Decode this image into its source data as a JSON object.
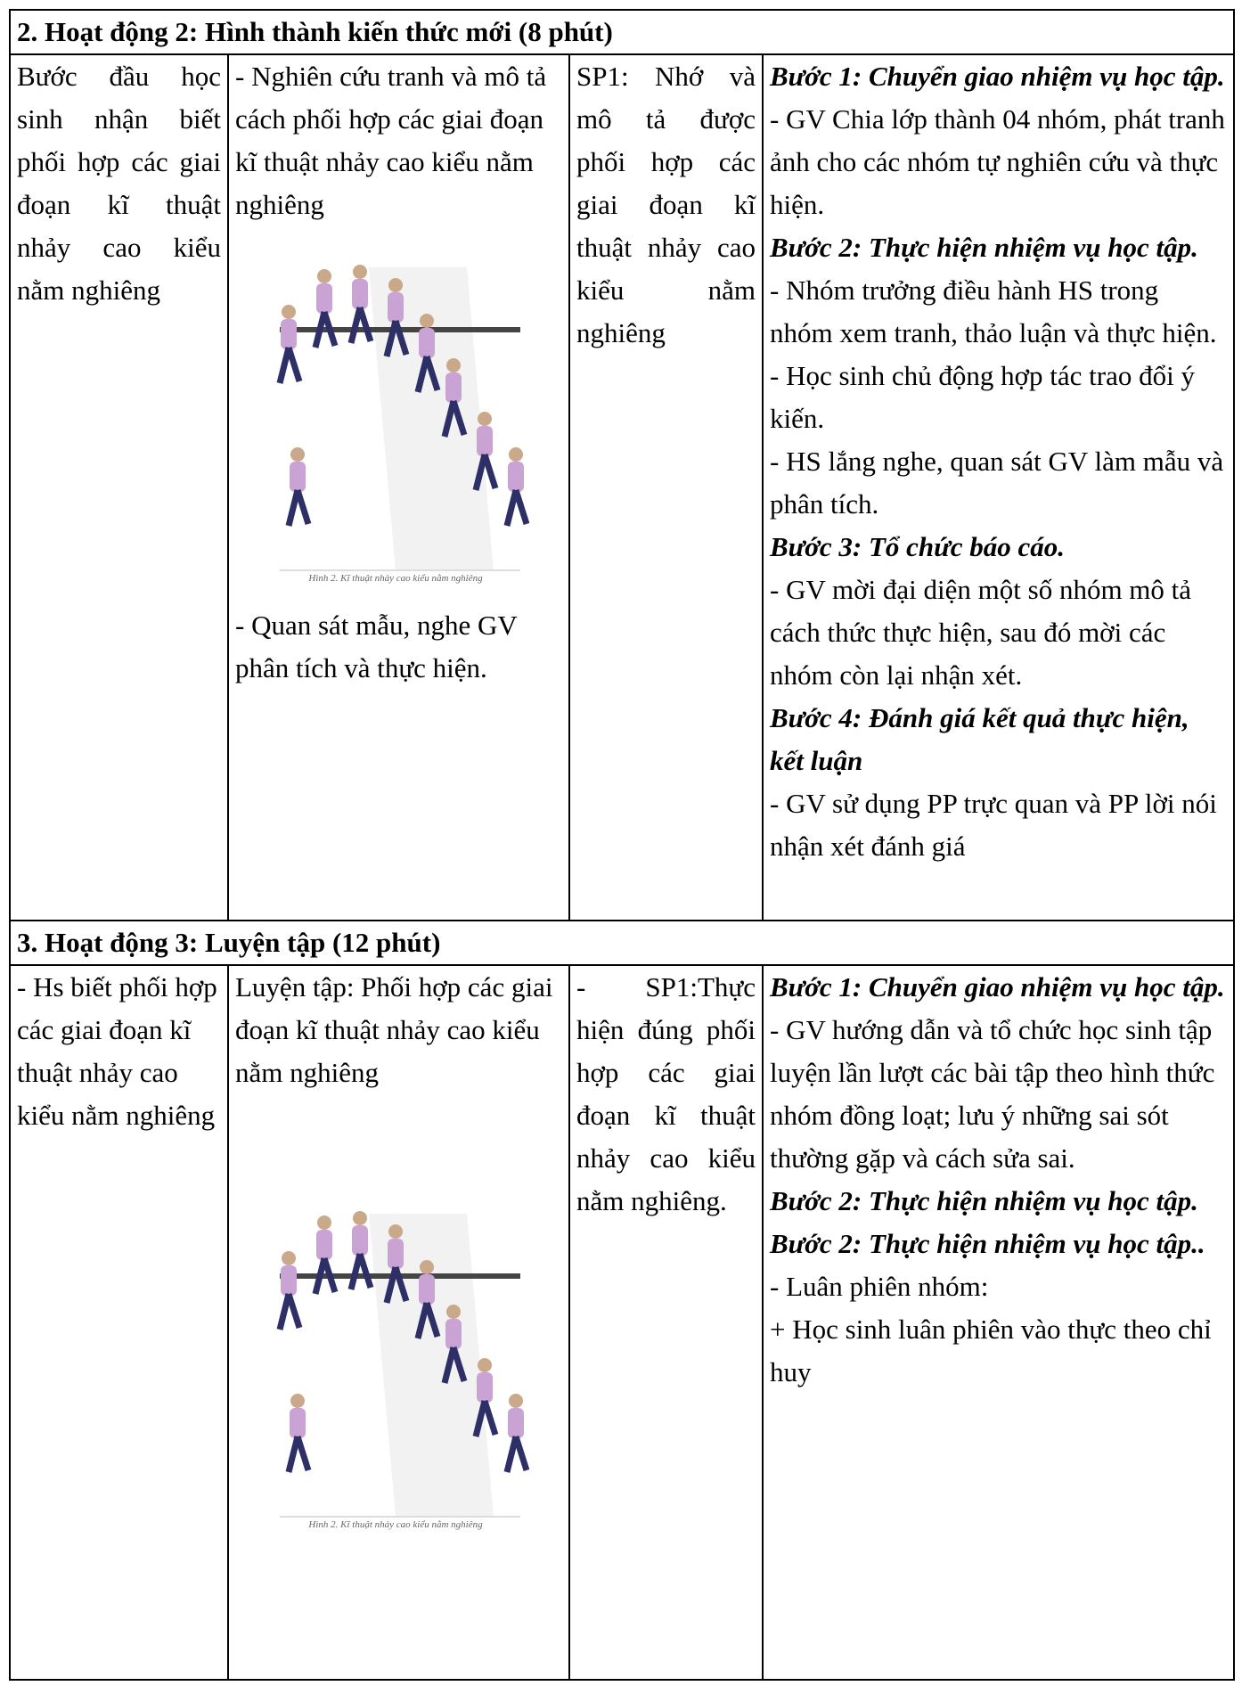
{
  "sections": [
    {
      "title": "2. Hoạt động 2: Hình thành kiến thức mới (8 phút)",
      "objective": "Bước đầu học sinh nhận biết phối hợp các giai đoạn kĩ thuật nhảy cao kiểu nằm nghiêng",
      "content_above": "- Nghiên cứu tranh và mô tả cách phối hợp các giai đoạn kĩ thuật nhảy cao kiểu nằm nghiêng",
      "figure_caption": "Hình 2. Kĩ thuật nhảy cao kiểu nằm nghiêng",
      "content_below": "- Quan sát mẫu, nghe GV phân tích và thực hiện.",
      "product": "SP1: Nhớ và mô tả được phối hợp các giai đoạn kĩ thuật nhảy cao kiểu nằm nghiêng",
      "steps": [
        {
          "heading": "Bước 1: Chuyển giao nhiệm vụ học tập.",
          "lines": [
            "- GV Chia lớp thành 04 nhóm, phát tranh ảnh cho các nhóm tự nghiên cứu và thực hiện."
          ]
        },
        {
          "heading": "Bước 2: Thực hiện nhiệm vụ học tập.",
          "lines": [
            "- Nhóm trưởng điều hành HS trong nhóm xem tranh, thảo luận và thực hiện.",
            "- Học sinh chủ động hợp tác trao đổi ý kiến.",
            "- HS lắng nghe, quan sát GV làm mẫu và phân tích."
          ]
        },
        {
          "heading": "Bước 3: Tổ chức báo cáo.",
          "lines": [
            "- GV mời đại diện một số nhóm mô tả cách thức thực hiện, sau đó mời các nhóm còn lại nhận xét."
          ]
        },
        {
          "heading": "Bước 4: Đánh giá kết quả thực hiện, kết luận",
          "lines": [
            "- GV sử dụng PP trực quan và PP lời nói nhận xét đánh giá"
          ]
        }
      ]
    },
    {
      "title": "3. Hoạt động 3: Luyện tập (12 phút)",
      "objective": "- Hs biết phối hợp các giai đoạn kĩ thuật nhảy cao kiểu nằm nghiêng",
      "content_above": "Luyện tập: Phối hợp các giai đoạn kĩ thuật nhảy cao kiểu nằm nghiêng",
      "figure_caption": "Hình 2. Kĩ thuật nhảy cao kiểu nằm nghiêng",
      "product": "- SP1:Thực hiện đúng phối hợp các giai đoạn kĩ thuật nhảy cao kiểu nằm nghiêng.",
      "steps": [
        {
          "heading": "Bước 1: Chuyển giao nhiệm vụ học tập.",
          "lines": [
            "- GV hướng dẫn và tổ chức học sinh tập luyện lần lượt các bài tập theo hình thức nhóm đồng loạt; lưu ý những sai sót thường gặp và cách sửa sai."
          ]
        },
        {
          "heading": "Bước 2: Thực hiện nhiệm vụ học tập.",
          "lines": []
        },
        {
          "heading": "Bước 2: Thực hiện nhiệm vụ học tập..",
          "lines": [
            "- Luân phiên nhóm:",
            "+ Học sinh luân phiên vào thực theo chỉ huy"
          ]
        }
      ]
    }
  ]
}
